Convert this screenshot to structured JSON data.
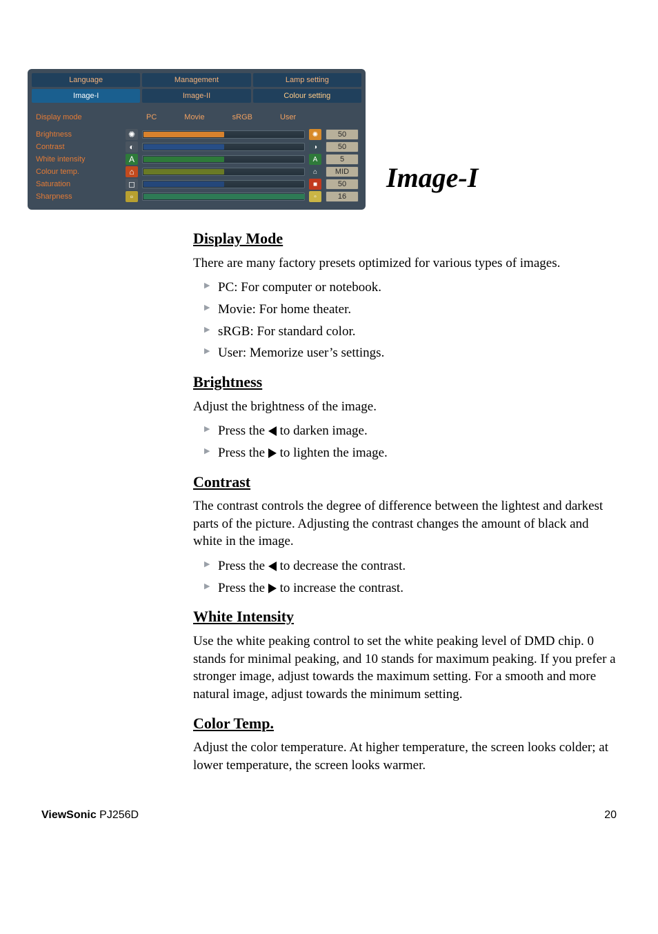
{
  "osd": {
    "tabs_row1": [
      "Language",
      "Management",
      "Lamp setting"
    ],
    "tabs_row2": [
      "Image-I",
      "Image-II",
      "Colour setting"
    ],
    "active_tab": "Image-I",
    "mode_row": {
      "label": "Display mode",
      "options": [
        "PC",
        "Movie",
        "sRGB",
        "User"
      ]
    },
    "rows": [
      {
        "label": "Brightness",
        "icon_bg": "#4a5560",
        "icon_txt": "✺",
        "fill_color": "#d7822d",
        "fill_pct": 50,
        "end_icon_bg": "#d78a2a",
        "end_icon_txt": "✺",
        "value": "50"
      },
      {
        "label": "Contrast",
        "icon_bg": "#4a5560",
        "icon_txt": "◐",
        "fill_color": "#274e86",
        "fill_pct": 50,
        "end_icon_bg": "#3a4e58",
        "end_icon_txt": "◑",
        "value": "50"
      },
      {
        "label": "White intensity",
        "icon_bg": "#2e7a3a",
        "icon_txt": "A",
        "fill_color": "#2e7a3a",
        "fill_pct": 50,
        "end_icon_bg": "#2e7a3a",
        "end_icon_txt": "A",
        "value": "5"
      },
      {
        "label": "Colour temp.",
        "icon_bg": "#c24a1e",
        "icon_txt": "⌂",
        "fill_color": "#6a7a25",
        "fill_pct": 50,
        "end_icon_bg": "#3a4e58",
        "end_icon_txt": "⌂",
        "value": "MID"
      },
      {
        "label": "Saturation",
        "icon_bg": "#4a5560",
        "icon_txt": "◻",
        "fill_color": "#24477a",
        "fill_pct": 50,
        "end_icon_bg": "#c23a1e",
        "end_icon_txt": "■",
        "value": "50"
      },
      {
        "label": "Sharpness",
        "icon_bg": "#b8a030",
        "icon_txt": "▫",
        "fill_color": "#2e7a55",
        "fill_pct": 100,
        "end_icon_bg": "#c9b545",
        "end_icon_txt": "▫",
        "value": "16"
      }
    ]
  },
  "title": "Image-I",
  "sections": {
    "display_mode": {
      "head": "Display Mode",
      "intro": "There are many factory presets optimized for various types of images.",
      "items": [
        "PC: For computer or notebook.",
        "Movie: For home theater.",
        "sRGB: For standard color.",
        "User: Memorize user’s settings."
      ]
    },
    "brightness": {
      "head": "Brightness",
      "intro": "Adjust the brightness of the image.",
      "left_txt_a": "Press the ",
      "left_txt_b": " to darken image.",
      "right_txt_a": "Press the ",
      "right_txt_b": " to lighten the image."
    },
    "contrast": {
      "head": "Contrast",
      "intro": "The contrast controls the degree of difference between the lightest and darkest parts of the picture. Adjusting the contrast changes the amount of black and white in the image.",
      "left_txt_a": "Press the ",
      "left_txt_b": " to decrease the contrast.",
      "right_txt_a": "Press the ",
      "right_txt_b": " to increase the contrast."
    },
    "white_intensity": {
      "head": "White Intensity",
      "intro": "Use the white peaking control to set the white peaking level of DMD chip. 0 stands for minimal peaking, and 10 stands for maximum peaking.  If you prefer a stronger image, adjust towards the maximum setting.  For a smooth and more natural image, adjust towards the minimum setting."
    },
    "color_temp": {
      "head": "Color Temp.",
      "intro": "Adjust the color temperature. At higher temperature, the screen looks colder; at lower temperature, the screen looks warmer."
    }
  },
  "footer": {
    "brand": "ViewSonic",
    "model": " PJ256D",
    "page": "20"
  }
}
